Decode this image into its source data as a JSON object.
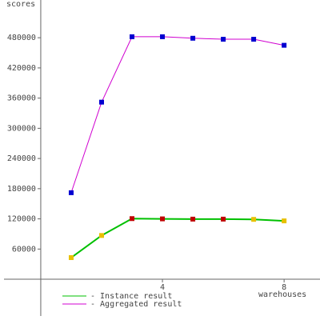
{
  "chart_data": {
    "type": "line",
    "x_label": "warehouses",
    "y_label": "scores",
    "x": [
      1,
      2,
      3,
      4,
      5,
      6,
      7,
      8
    ],
    "series": [
      {
        "name": "- Instance result",
        "color": "#00c000",
        "values": [
          43000,
          87000,
          120500,
          120000,
          119500,
          119500,
          119000,
          116000
        ],
        "marker_colors": [
          "#e8c000",
          "#e8c000",
          "#c00000",
          "#c00000",
          "#c00000",
          "#c00000",
          "#e8c000",
          "#e8c000"
        ]
      },
      {
        "name": "- Aggregated result",
        "color": "#d000d0",
        "values": [
          172000,
          352000,
          482000,
          482000,
          479000,
          477000,
          477000,
          465000
        ],
        "marker_colors": [
          "#0000d0",
          "#0000d0",
          "#0000d0",
          "#0000d0",
          "#0000d0",
          "#0000d0",
          "#0000d0",
          "#0000d0"
        ]
      }
    ],
    "xlim": [
      -1.34,
      9.18
    ],
    "ylim": [
      -81000,
      555000
    ],
    "xticks": [
      4,
      8
    ],
    "yticks": [
      60000,
      120000,
      180000,
      240000,
      300000,
      360000,
      420000,
      480000
    ]
  }
}
